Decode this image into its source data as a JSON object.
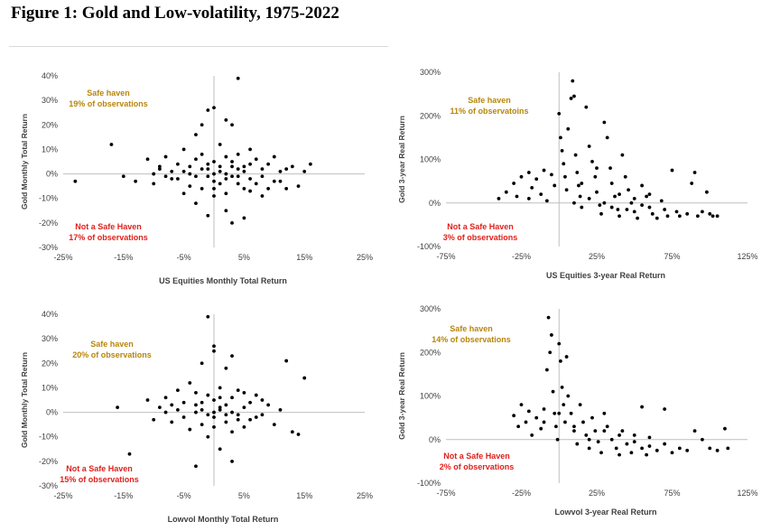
{
  "figure_title": "Figure 1: Gold and Low-volatility, 1975-2022",
  "colors": {
    "point": "#000000",
    "axis": "#bfbfbf",
    "safe_text": "#b8860b",
    "unsafe_text": "#e0201b",
    "label": "#404040"
  },
  "chart_data": [
    {
      "type": "scatter",
      "xlabel": "US Equities Monthly Total Return",
      "ylabel": "Gold Monthly Total Return",
      "xlim": [
        -25,
        25
      ],
      "ylim": [
        -30,
        40
      ],
      "xticks": [
        "-25%",
        "-15%",
        "-5%",
        "5%",
        "15%",
        "25%"
      ],
      "yticks": [
        "-30%",
        "-20%",
        "-10%",
        "0%",
        "10%",
        "20%",
        "30%",
        "40%"
      ],
      "safe_label": "Safe haven",
      "safe_pct": "19% of observations",
      "unsafe_label": "Not a Safe Haven",
      "unsafe_pct": "17% of observations",
      "points": [
        [
          -23,
          -3
        ],
        [
          -17,
          12
        ],
        [
          -15,
          -1
        ],
        [
          -13,
          -3
        ],
        [
          -11,
          6
        ],
        [
          -10,
          -4
        ],
        [
          -9,
          2
        ],
        [
          -8,
          7
        ],
        [
          -7,
          -2
        ],
        [
          -6,
          4
        ],
        [
          -5,
          -8
        ],
        [
          -5,
          10
        ],
        [
          -4,
          3
        ],
        [
          -4,
          -5
        ],
        [
          -3,
          16
        ],
        [
          -3,
          -12
        ],
        [
          -2,
          8
        ],
        [
          -2,
          -6
        ],
        [
          -2,
          20
        ],
        [
          -1,
          26
        ],
        [
          -1,
          -17
        ],
        [
          -1,
          2
        ],
        [
          0,
          27
        ],
        [
          0,
          5
        ],
        [
          0,
          -3
        ],
        [
          0,
          -9
        ],
        [
          1,
          12
        ],
        [
          1,
          -4
        ],
        [
          1,
          3
        ],
        [
          2,
          22
        ],
        [
          2,
          7
        ],
        [
          2,
          -2
        ],
        [
          2,
          -15
        ],
        [
          3,
          -20
        ],
        [
          3,
          20
        ],
        [
          3,
          5
        ],
        [
          4,
          39
        ],
        [
          4,
          -1
        ],
        [
          4,
          8
        ],
        [
          5,
          -18
        ],
        [
          5,
          3
        ],
        [
          5,
          -6
        ],
        [
          6,
          10
        ],
        [
          6,
          -2
        ],
        [
          7,
          6
        ],
        [
          7,
          -4
        ],
        [
          8,
          2
        ],
        [
          8,
          -9
        ],
        [
          9,
          4
        ],
        [
          10,
          -3
        ],
        [
          10,
          7
        ],
        [
          11,
          1
        ],
        [
          12,
          -6
        ],
        [
          13,
          3
        ],
        [
          14,
          -5
        ],
        [
          15,
          1
        ],
        [
          16,
          4
        ],
        [
          -6,
          -2
        ],
        [
          -5,
          1
        ],
        [
          -3,
          -1
        ],
        [
          -1,
          -1
        ],
        [
          0,
          0
        ],
        [
          1,
          1
        ],
        [
          2,
          0
        ],
        [
          3,
          -1
        ],
        [
          4,
          2
        ],
        [
          -2,
          2
        ],
        [
          -1,
          4
        ],
        [
          3,
          3
        ],
        [
          5,
          1
        ],
        [
          6,
          4
        ],
        [
          -4,
          0
        ],
        [
          -3,
          6
        ],
        [
          0,
          -6
        ],
        [
          2,
          -8
        ],
        [
          4,
          -4
        ],
        [
          6,
          -7
        ],
        [
          -7,
          1
        ],
        [
          8,
          -1
        ],
        [
          9,
          -6
        ],
        [
          -8,
          -1
        ],
        [
          -9,
          3
        ],
        [
          11,
          -3
        ],
        [
          -10,
          0
        ],
        [
          12,
          2
        ]
      ]
    },
    {
      "type": "scatter",
      "xlabel": "US Equities 3-year Real Return",
      "ylabel": "Gold  3-year Real Return",
      "xlim": [
        -75,
        125
      ],
      "ylim": [
        -100,
        300
      ],
      "xticks": [
        "-75%",
        "-25%",
        "25%",
        "75%",
        "125%"
      ],
      "yticks": [
        "-100%",
        "0%",
        "100%",
        "200%",
        "300%"
      ],
      "safe_label": "Safe haven",
      "safe_pct": "11% of observatoins",
      "unsafe_label": "Not a Safe Haven",
      "unsafe_pct": "3% of observations",
      "points": [
        [
          -40,
          10
        ],
        [
          -35,
          25
        ],
        [
          -30,
          45
        ],
        [
          -28,
          15
        ],
        [
          -25,
          60
        ],
        [
          -20,
          70
        ],
        [
          -18,
          35
        ],
        [
          -15,
          55
        ],
        [
          -12,
          20
        ],
        [
          -10,
          75
        ],
        [
          -8,
          5
        ],
        [
          -5,
          65
        ],
        [
          -3,
          40
        ],
        [
          0,
          205
        ],
        [
          1,
          150
        ],
        [
          2,
          120
        ],
        [
          3,
          90
        ],
        [
          4,
          60
        ],
        [
          5,
          30
        ],
        [
          6,
          170
        ],
        [
          8,
          240
        ],
        [
          9,
          280
        ],
        [
          10,
          245
        ],
        [
          11,
          110
        ],
        [
          12,
          70
        ],
        [
          13,
          40
        ],
        [
          14,
          15
        ],
        [
          15,
          -10
        ],
        [
          18,
          220
        ],
        [
          20,
          130
        ],
        [
          22,
          95
        ],
        [
          24,
          60
        ],
        [
          25,
          25
        ],
        [
          27,
          -5
        ],
        [
          28,
          -25
        ],
        [
          30,
          185
        ],
        [
          32,
          150
        ],
        [
          34,
          80
        ],
        [
          35,
          45
        ],
        [
          37,
          15
        ],
        [
          39,
          -15
        ],
        [
          40,
          -30
        ],
        [
          42,
          110
        ],
        [
          44,
          60
        ],
        [
          46,
          30
        ],
        [
          48,
          0
        ],
        [
          50,
          -20
        ],
        [
          52,
          -35
        ],
        [
          55,
          40
        ],
        [
          58,
          15
        ],
        [
          60,
          -10
        ],
        [
          62,
          -25
        ],
        [
          65,
          -35
        ],
        [
          68,
          5
        ],
        [
          70,
          -15
        ],
        [
          72,
          -30
        ],
        [
          75,
          75
        ],
        [
          78,
          -20
        ],
        [
          80,
          -30
        ],
        [
          85,
          -25
        ],
        [
          88,
          45
        ],
        [
          90,
          70
        ],
        [
          92,
          -30
        ],
        [
          95,
          -20
        ],
        [
          98,
          25
        ],
        [
          100,
          -25
        ],
        [
          102,
          -30
        ],
        [
          105,
          -30
        ],
        [
          -20,
          10
        ],
        [
          10,
          0
        ],
        [
          20,
          10
        ],
        [
          30,
          0
        ],
        [
          40,
          20
        ],
        [
          50,
          10
        ],
        [
          60,
          20
        ],
        [
          15,
          45
        ],
        [
          25,
          80
        ],
        [
          35,
          -10
        ],
        [
          45,
          -15
        ],
        [
          55,
          -5
        ]
      ]
    },
    {
      "type": "scatter",
      "xlabel": "Lowvol Monthly Total Return",
      "ylabel": "Gold Monthly Total Return",
      "xlim": [
        -25,
        25
      ],
      "ylim": [
        -30,
        40
      ],
      "xticks": [
        "-25%",
        "-15%",
        "-5%",
        "5%",
        "15%",
        "25%"
      ],
      "yticks": [
        "-30%",
        "-20%",
        "-10%",
        "0%",
        "10%",
        "20%",
        "30%",
        "40%"
      ],
      "safe_label": "Safe haven",
      "safe_pct": "20% of observations",
      "unsafe_label": "Not a Safe Haven",
      "unsafe_pct": "15% of observations",
      "points": [
        [
          -16,
          2
        ],
        [
          -14,
          -17
        ],
        [
          -11,
          5
        ],
        [
          -10,
          -3
        ],
        [
          -9,
          2
        ],
        [
          -8,
          6
        ],
        [
          -7,
          -4
        ],
        [
          -6,
          9
        ],
        [
          -5,
          -2
        ],
        [
          -5,
          4
        ],
        [
          -4,
          -7
        ],
        [
          -4,
          12
        ],
        [
          -3,
          -22
        ],
        [
          -3,
          3
        ],
        [
          -2,
          20
        ],
        [
          -2,
          -5
        ],
        [
          -1,
          7
        ],
        [
          -1,
          -10
        ],
        [
          -1,
          39
        ],
        [
          0,
          25
        ],
        [
          0,
          27
        ],
        [
          0,
          -2
        ],
        [
          0,
          5
        ],
        [
          1,
          -15
        ],
        [
          1,
          10
        ],
        [
          1,
          1
        ],
        [
          2,
          18
        ],
        [
          2,
          -4
        ],
        [
          2,
          3
        ],
        [
          3,
          -20
        ],
        [
          3,
          23
        ],
        [
          3,
          6
        ],
        [
          4,
          -1
        ],
        [
          4,
          9
        ],
        [
          5,
          -6
        ],
        [
          5,
          2
        ],
        [
          6,
          4
        ],
        [
          6,
          -3
        ],
        [
          7,
          7
        ],
        [
          8,
          -1
        ],
        [
          9,
          3
        ],
        [
          10,
          -5
        ],
        [
          11,
          1
        ],
        [
          12,
          21
        ],
        [
          13,
          -8
        ],
        [
          14,
          -9
        ],
        [
          15,
          14
        ],
        [
          -3,
          0
        ],
        [
          -2,
          1
        ],
        [
          -1,
          -1
        ],
        [
          0,
          0
        ],
        [
          1,
          2
        ],
        [
          2,
          -1
        ],
        [
          3,
          0
        ],
        [
          -2,
          4
        ],
        [
          1,
          6
        ],
        [
          4,
          -3
        ],
        [
          -3,
          8
        ],
        [
          0,
          -6
        ],
        [
          3,
          -8
        ],
        [
          5,
          8
        ],
        [
          -6,
          1
        ],
        [
          7,
          -2
        ],
        [
          -7,
          3
        ],
        [
          8,
          5
        ],
        [
          -8,
          0
        ]
      ]
    },
    {
      "type": "scatter",
      "xlabel": "Lowvol 3-year Real Return",
      "ylabel": "Gold  3-year Real Return",
      "xlim": [
        -75,
        125
      ],
      "ylim": [
        -100,
        300
      ],
      "xticks": [
        "-75%",
        "-25%",
        "25%",
        "75%",
        "125%"
      ],
      "yticks": [
        "-100%",
        "0%",
        "100%",
        "200%",
        "300%"
      ],
      "safe_label": "Safe haven",
      "safe_pct": "14% of observations",
      "unsafe_label": "Not a Safe Haven",
      "unsafe_pct": "2% of observations",
      "points": [
        [
          -30,
          55
        ],
        [
          -27,
          30
        ],
        [
          -25,
          80
        ],
        [
          -22,
          40
        ],
        [
          -20,
          65
        ],
        [
          -18,
          10
        ],
        [
          -15,
          50
        ],
        [
          -12,
          25
        ],
        [
          -10,
          70
        ],
        [
          -8,
          160
        ],
        [
          -7,
          280
        ],
        [
          -6,
          200
        ],
        [
          -5,
          240
        ],
        [
          -4,
          110
        ],
        [
          -3,
          60
        ],
        [
          -2,
          30
        ],
        [
          -1,
          0
        ],
        [
          0,
          220
        ],
        [
          1,
          180
        ],
        [
          2,
          120
        ],
        [
          3,
          80
        ],
        [
          4,
          40
        ],
        [
          5,
          190
        ],
        [
          6,
          100
        ],
        [
          8,
          60
        ],
        [
          10,
          20
        ],
        [
          12,
          -10
        ],
        [
          14,
          80
        ],
        [
          16,
          40
        ],
        [
          18,
          10
        ],
        [
          20,
          -20
        ],
        [
          22,
          50
        ],
        [
          24,
          20
        ],
        [
          26,
          -5
        ],
        [
          28,
          -30
        ],
        [
          30,
          60
        ],
        [
          32,
          30
        ],
        [
          35,
          0
        ],
        [
          38,
          -20
        ],
        [
          40,
          -35
        ],
        [
          42,
          20
        ],
        [
          45,
          -10
        ],
        [
          48,
          -30
        ],
        [
          50,
          10
        ],
        [
          55,
          -20
        ],
        [
          58,
          -35
        ],
        [
          60,
          -15
        ],
        [
          65,
          -25
        ],
        [
          70,
          -10
        ],
        [
          75,
          -30
        ],
        [
          80,
          -20
        ],
        [
          85,
          -25
        ],
        [
          90,
          20
        ],
        [
          95,
          0
        ],
        [
          100,
          -20
        ],
        [
          105,
          -25
        ],
        [
          110,
          25
        ],
        [
          112,
          -20
        ],
        [
          -10,
          40
        ],
        [
          0,
          60
        ],
        [
          10,
          30
        ],
        [
          20,
          0
        ],
        [
          30,
          20
        ],
        [
          40,
          10
        ],
        [
          50,
          -5
        ],
        [
          60,
          5
        ],
        [
          70,
          70
        ],
        [
          55,
          75
        ]
      ]
    }
  ]
}
